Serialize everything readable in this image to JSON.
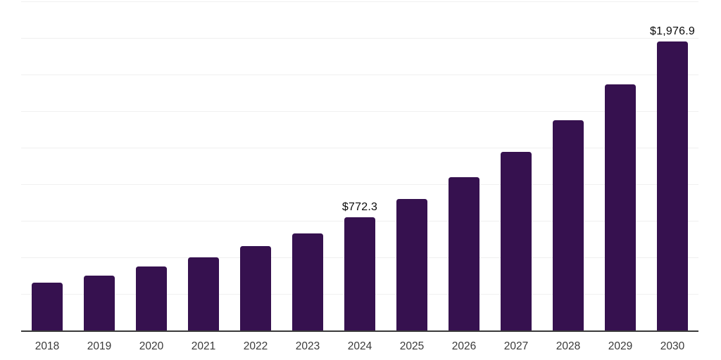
{
  "chart_data": {
    "type": "bar",
    "title": "",
    "xlabel": "",
    "ylabel": "",
    "categories": [
      "2018",
      "2019",
      "2020",
      "2021",
      "2022",
      "2023",
      "2024",
      "2025",
      "2026",
      "2027",
      "2028",
      "2029",
      "2030"
    ],
    "values": [
      325,
      376,
      436,
      500,
      577,
      662,
      772.3,
      900,
      1046,
      1222,
      1439,
      1683,
      1976.9
    ],
    "data_labels": {
      "2024": "$772.3",
      "2030": "$1,976.9"
    },
    "ylim": [
      0,
      2250
    ],
    "gridline_interval": 250,
    "grid": "horizontal",
    "y_tick_labels_visible": false,
    "legend": "none",
    "colors": {
      "bar": "#36114F",
      "gridline": "#f0f0f0",
      "axis_line": "#3a3a3a",
      "x_tick_label": "#3a3a3a",
      "data_label": "#0a0a0a",
      "background": "#ffffff"
    }
  }
}
